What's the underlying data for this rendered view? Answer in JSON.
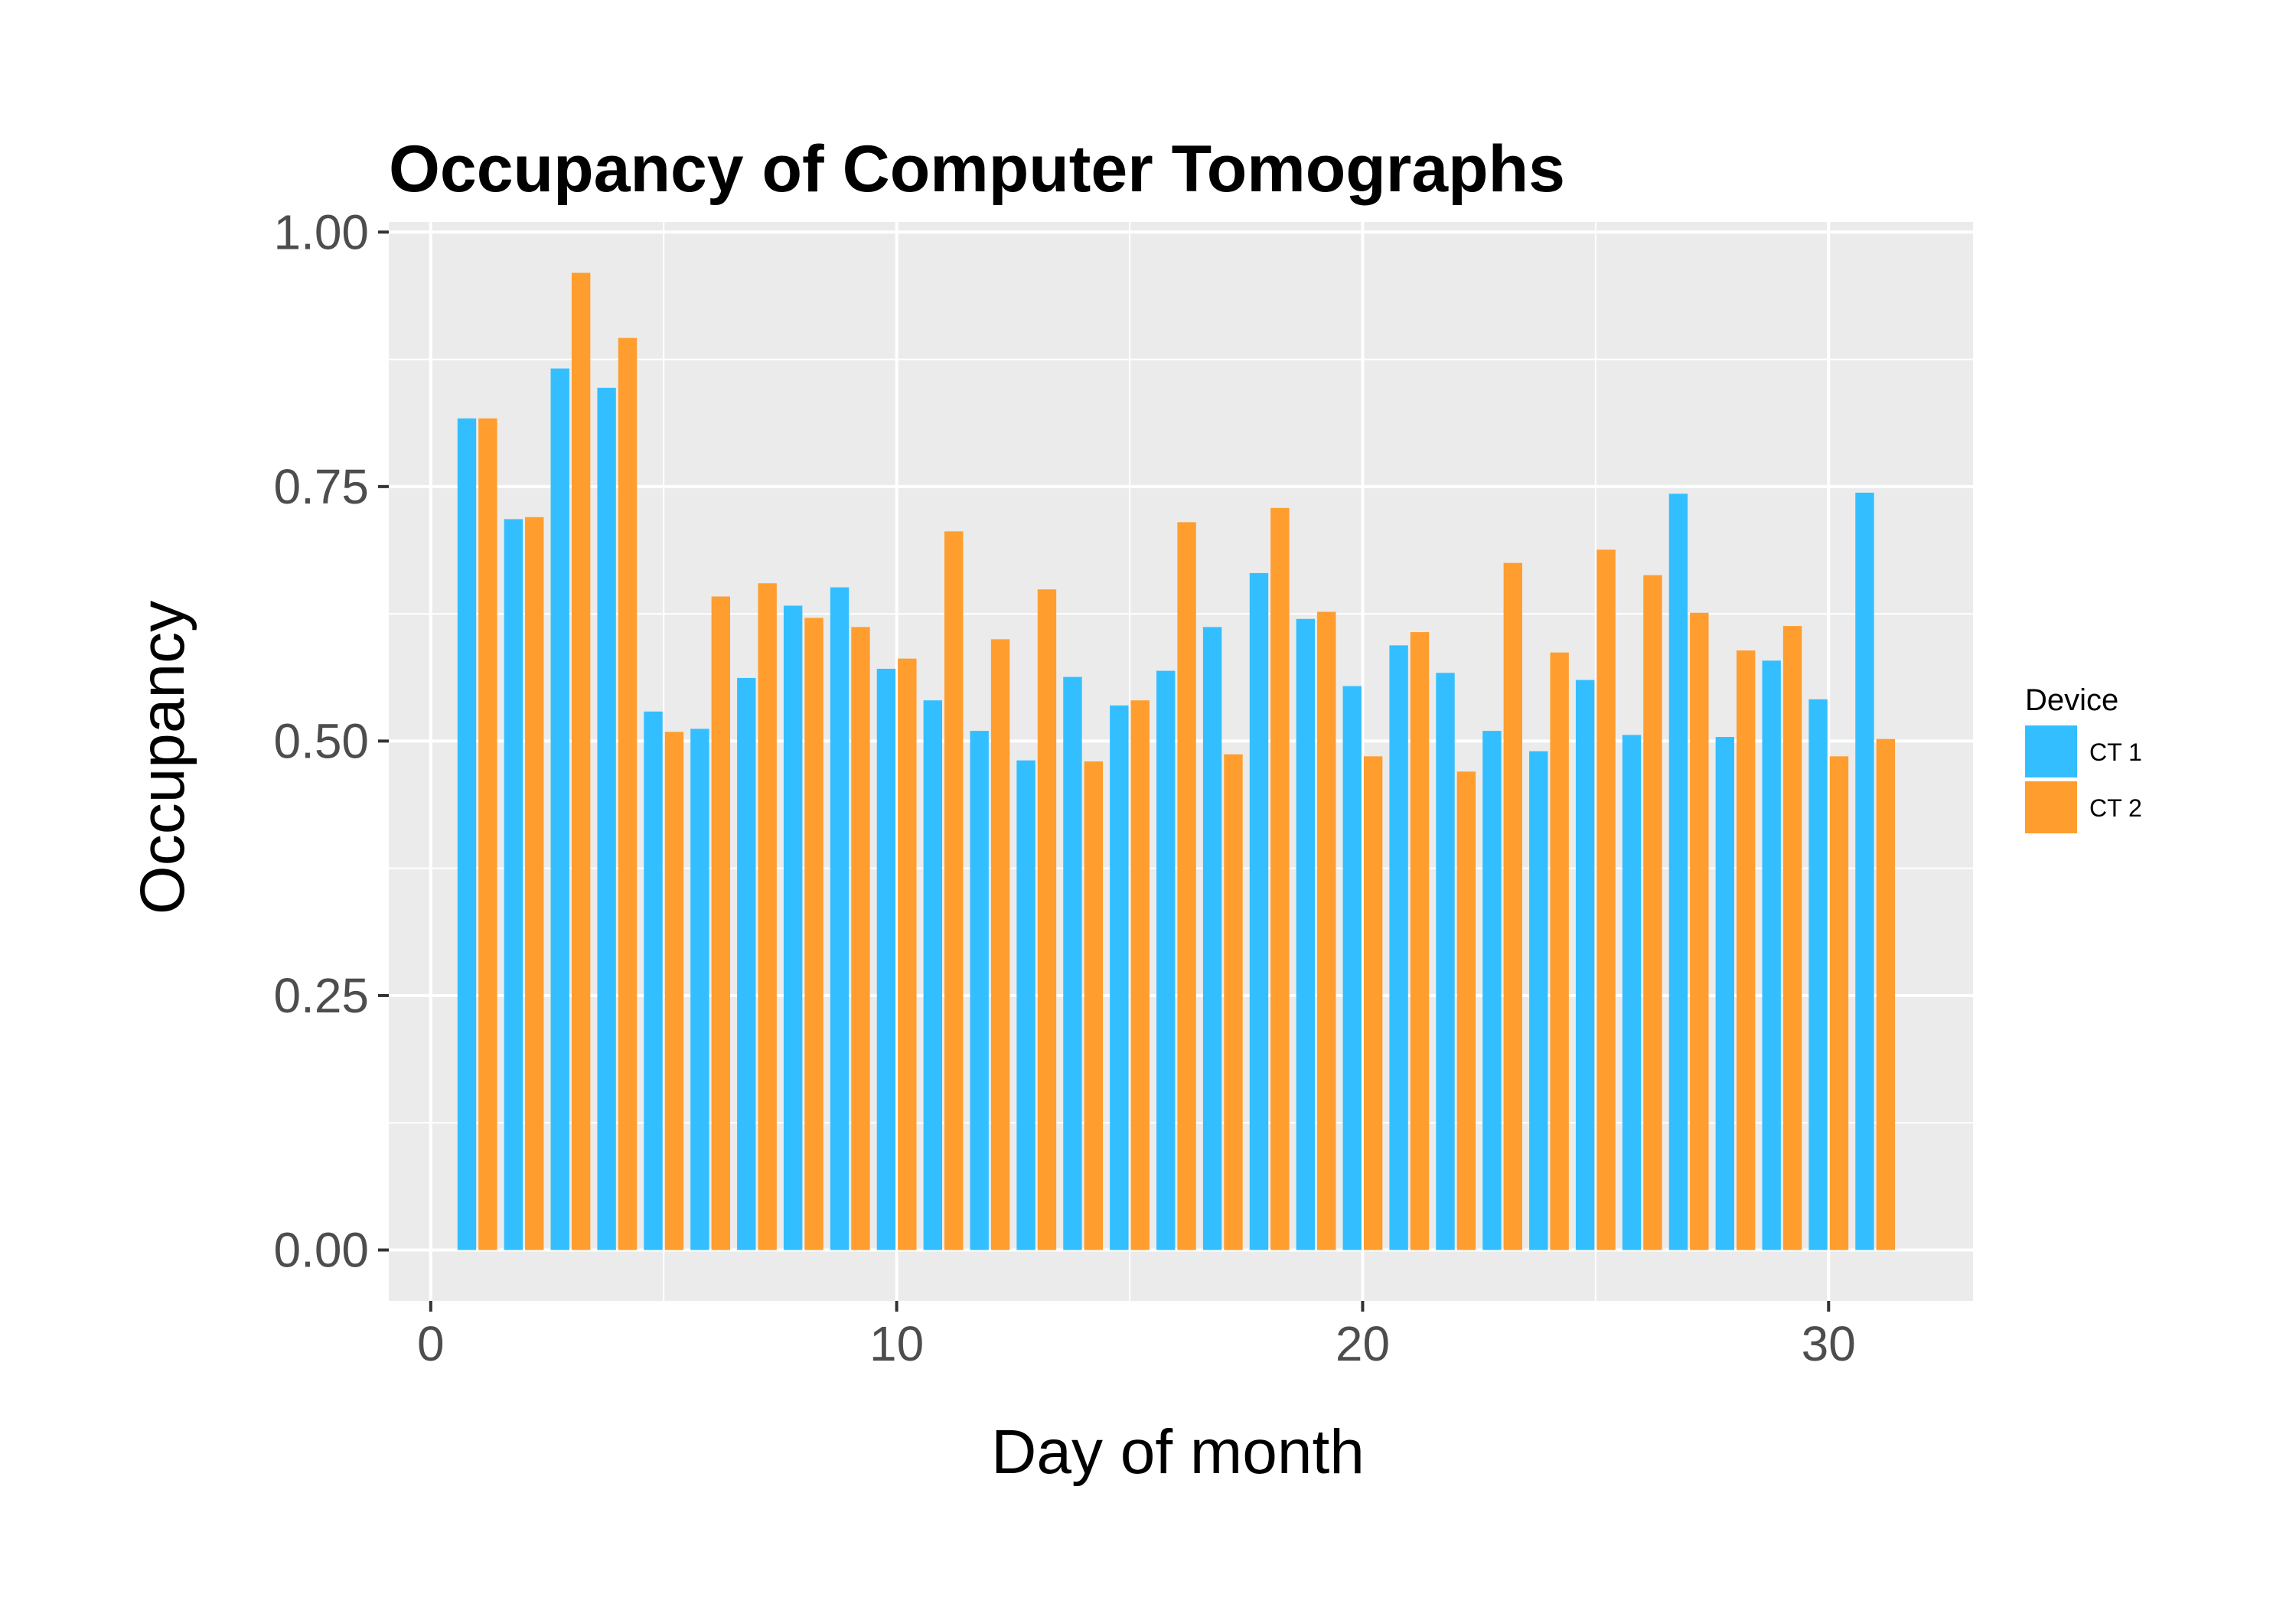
{
  "chart_data": {
    "type": "bar",
    "title": "Occupancy of Computer Tomographs",
    "xlabel": "Day of month",
    "ylabel": "Occupancy",
    "x": [
      1,
      2,
      3,
      4,
      5,
      6,
      7,
      8,
      9,
      10,
      11,
      12,
      13,
      14,
      15,
      16,
      17,
      18,
      19,
      20,
      21,
      22,
      23,
      24,
      25,
      26,
      27,
      28,
      29,
      30,
      31
    ],
    "series": [
      {
        "name": "CT 1",
        "color": "#33bfff",
        "values": [
          0.817,
          0.718,
          0.866,
          0.847,
          0.529,
          0.512,
          0.562,
          0.633,
          0.651,
          0.571,
          0.54,
          0.51,
          0.481,
          0.563,
          0.535,
          0.569,
          0.612,
          0.665,
          0.62,
          0.554,
          0.594,
          0.567,
          0.51,
          0.49,
          0.56,
          0.506,
          0.743,
          0.504,
          0.579,
          0.541,
          0.744
        ]
      },
      {
        "name": "CT 2",
        "color": "#ff9d2e",
        "values": [
          0.817,
          0.72,
          0.96,
          0.896,
          0.509,
          0.642,
          0.655,
          0.621,
          0.612,
          0.581,
          0.706,
          0.6,
          0.649,
          0.48,
          0.54,
          0.715,
          0.487,
          0.729,
          0.627,
          0.485,
          0.607,
          0.47,
          0.675,
          0.587,
          0.688,
          0.663,
          0.626,
          0.589,
          0.613,
          0.485,
          0.502
        ]
      }
    ],
    "xlim": [
      -0.9,
      33.1
    ],
    "ylim": [
      -0.05,
      1.01
    ],
    "xticks": [
      0,
      10,
      20,
      30
    ],
    "xtick_labels": [
      "0",
      "10",
      "20",
      "30"
    ],
    "yticks": [
      0,
      0.25,
      0.5,
      0.75,
      1.0
    ],
    "ytick_labels": [
      "0.00",
      "0.25",
      "0.50",
      "0.75",
      "1.00"
    ],
    "grid": true,
    "panel_background": "#ebebeb",
    "legend": {
      "title": "Device",
      "position": "right",
      "entries": [
        "CT 1",
        "CT 2"
      ]
    }
  }
}
